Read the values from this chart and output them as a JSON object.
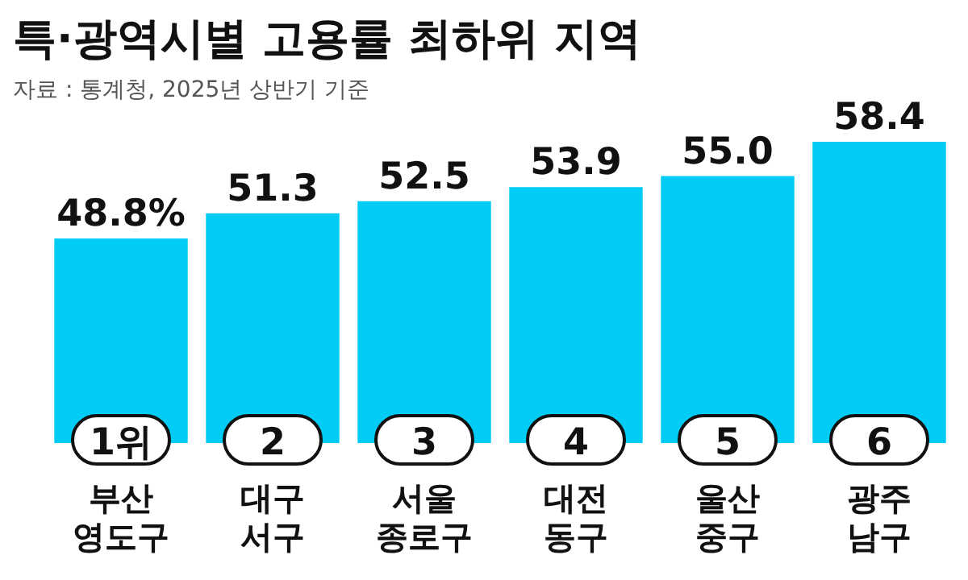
{
  "chart_data": {
    "type": "bar",
    "title": "특·광역시별 고용률 최하위 지역",
    "subtitle": "자료 : 통계청, 2025년 상반기 기준",
    "categories": [
      "부산\n영도구",
      "대구\n서구",
      "서울\n종로구",
      "대전\n동구",
      "울산\n중구",
      "광주\n남구"
    ],
    "values": [
      48.8,
      51.3,
      52.5,
      53.9,
      55.0,
      58.4
    ],
    "value_labels": [
      "48.8%",
      "51.3",
      "52.5",
      "53.9",
      "55.0",
      "58.4"
    ],
    "color": "#00ccf5",
    "ylim": [
      28.5,
      58.4
    ],
    "tick_labels": "x",
    "annotations": [
      {
        "text": "1위",
        "x": "부산\n영도구"
      },
      {
        "text": "2",
        "x": "대구\n서구"
      },
      {
        "text": "3",
        "x": "서울\n종로구"
      },
      {
        "text": "4",
        "x": "대전\n동구"
      },
      {
        "text": "5",
        "x": "울산\n중구"
      },
      {
        "text": "6",
        "x": "광주\n남구"
      }
    ]
  }
}
